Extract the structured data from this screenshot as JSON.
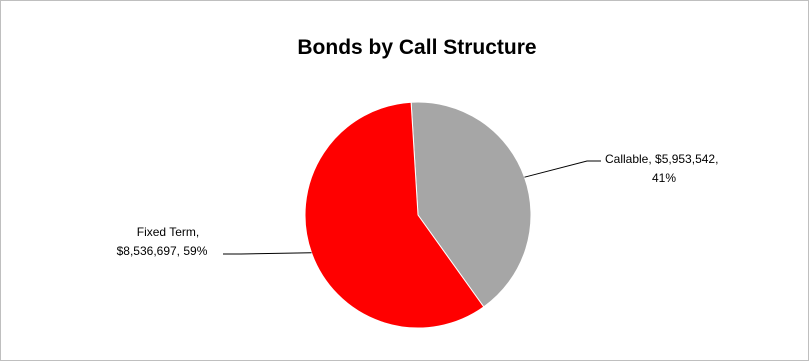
{
  "chart_data": {
    "type": "pie",
    "title": "Bonds by Call Structure",
    "categories": [
      "Callable",
      "Fixed Term"
    ],
    "values": [
      5953542,
      8536697
    ],
    "percentages": [
      41,
      59
    ],
    "colors": [
      "#a6a6a6",
      "#ff0000"
    ],
    "labels": [
      {
        "category": "Callable",
        "line1": "Callable, $5,953,542,",
        "line2": "41%"
      },
      {
        "category": "Fixed Term",
        "line1": "Fixed Term,",
        "line2": "$8,536,697, 59%"
      }
    ],
    "legend": "none"
  }
}
